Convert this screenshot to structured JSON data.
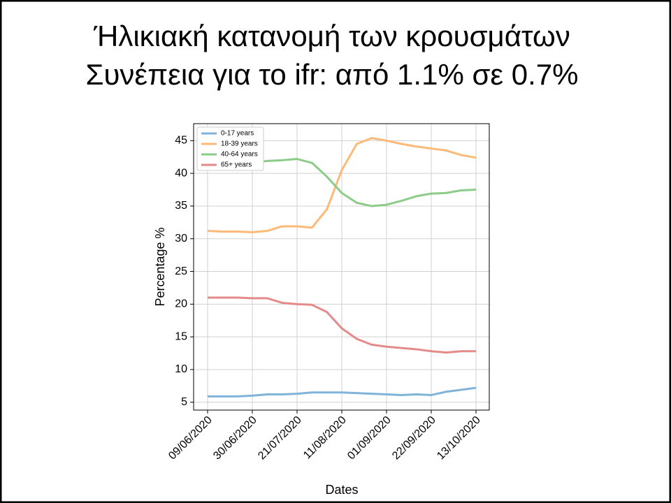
{
  "chart_data": {
    "type": "line",
    "title": "Ήλικιακή κατανομή των κρουσμάτων",
    "subtitle": "Συνέπεια για το ifr: από 1.1% σε 0.7%",
    "x_label": "Dates",
    "y_label": "Percentage %",
    "categories": [
      "09/06/2020",
      null,
      null,
      "30/06/2020",
      null,
      null,
      "21/07/2020",
      null,
      null,
      "11/08/2020",
      null,
      null,
      "01/09/2020",
      null,
      null,
      "22/09/2020",
      null,
      null,
      "13/10/2020"
    ],
    "series": [
      {
        "name": "0-17 years",
        "color": "#80b3d9",
        "values": [
          5.9,
          5.9,
          5.9,
          6.0,
          6.2,
          6.2,
          6.3,
          6.5,
          6.5,
          6.5,
          6.4,
          6.3,
          6.2,
          6.1,
          6.2,
          6.1,
          6.6,
          6.9,
          7.2
        ]
      },
      {
        "name": "18-39 years",
        "color": "#fdb977",
        "values": [
          31.2,
          31.1,
          31.1,
          31.0,
          31.2,
          31.9,
          31.9,
          31.7,
          34.5,
          40.5,
          44.5,
          45.4,
          45.0,
          44.5,
          44.1,
          43.8,
          43.5,
          42.8,
          42.4
        ]
      },
      {
        "name": "40-64 years",
        "color": "#8ccc88",
        "values": [
          42.0,
          41.8,
          41.8,
          41.6,
          41.9,
          42.0,
          42.2,
          41.6,
          39.5,
          37.0,
          35.5,
          35.0,
          35.2,
          35.8,
          36.5,
          36.9,
          37.0,
          37.4,
          37.5
        ]
      },
      {
        "name": "65+ years",
        "color": "#e48a8a",
        "values": [
          21.0,
          21.0,
          21.0,
          20.9,
          20.9,
          20.2,
          20.0,
          19.9,
          18.8,
          16.3,
          14.7,
          13.8,
          13.5,
          13.3,
          13.1,
          12.8,
          12.6,
          12.8,
          12.8
        ]
      }
    ],
    "ylim": [
      3.8,
      47.6
    ],
    "yticks": [
      5,
      10,
      15,
      20,
      25,
      30,
      35,
      40,
      45
    ],
    "grid": true,
    "legend": "upper-left"
  }
}
